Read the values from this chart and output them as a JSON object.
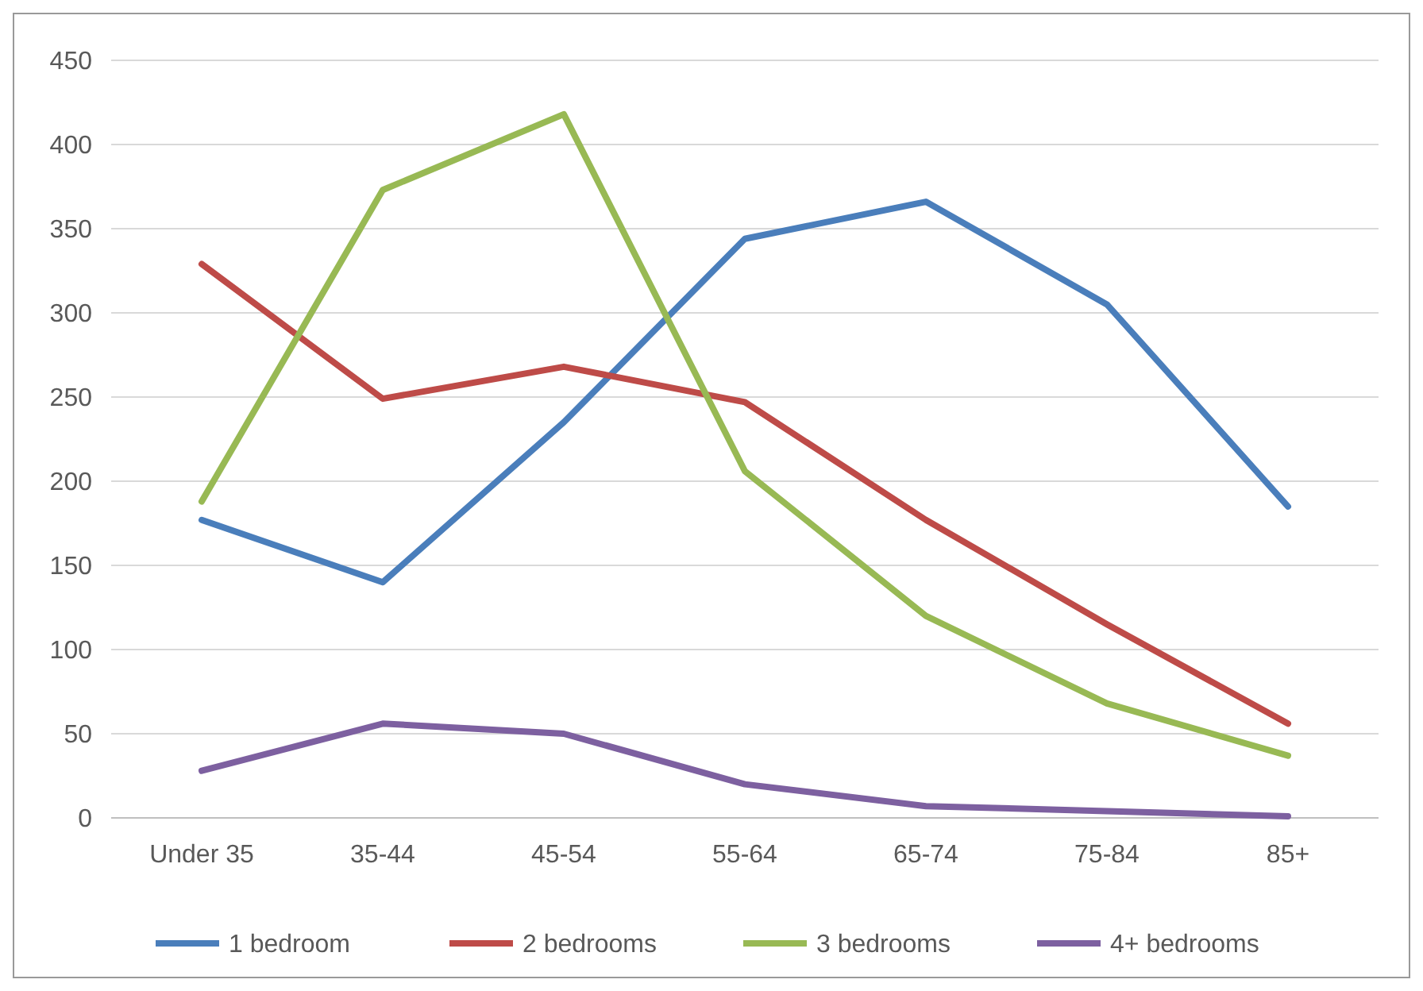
{
  "chart_data": {
    "type": "line",
    "categories": [
      "Under 35",
      "35-44",
      "45-54",
      "55-64",
      "65-74",
      "75-84",
      "85+"
    ],
    "series": [
      {
        "name": "1 bedroom",
        "color": "#4a7ebb",
        "values": [
          177,
          140,
          235,
          344,
          366,
          305,
          185
        ]
      },
      {
        "name": "2 bedrooms",
        "color": "#be4b48",
        "values": [
          329,
          249,
          268,
          247,
          177,
          115,
          56
        ]
      },
      {
        "name": "3 bedrooms",
        "color": "#98b954",
        "values": [
          188,
          373,
          418,
          206,
          120,
          68,
          37
        ]
      },
      {
        "name": "4+ bedrooms",
        "color": "#7d60a0",
        "values": [
          28,
          56,
          50,
          20,
          7,
          4,
          1
        ]
      }
    ],
    "ylim": [
      0,
      450
    ],
    "yticks": [
      0,
      50,
      100,
      150,
      200,
      250,
      300,
      350,
      400,
      450
    ],
    "grid": "y",
    "legend": "bottom",
    "marker": "none",
    "line_style": "solid"
  }
}
